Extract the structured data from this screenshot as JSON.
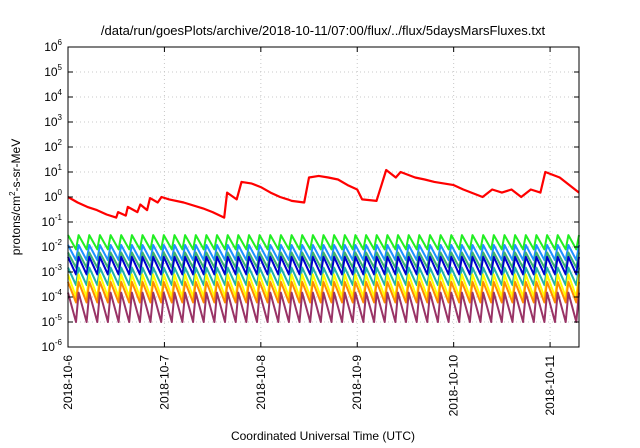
{
  "chart_data": {
    "type": "line",
    "title": "/data/run/goesPlots/archive/2018-10-11/07:00/flux/../flux/5daysMarsFluxes.txt",
    "xlabel": "Coordinated Universal Time (UTC)",
    "ylabel": "protons/cm2-s-sr-MeV",
    "yscale": "log",
    "ylim_log10": [
      -6,
      6
    ],
    "xlim_days": [
      0,
      5.3
    ],
    "x_tick_labels": [
      "2018-10-6",
      "2018-10-7",
      "2018-10-8",
      "2018-10-9",
      "2018-10-10",
      "2018-10-11"
    ],
    "y_tick_exponents": [
      -6,
      -5,
      -4,
      -3,
      -2,
      -1,
      0,
      1,
      2,
      3,
      4,
      5,
      6
    ],
    "y_tick_base": "10",
    "grid": true,
    "legend": "none",
    "series": [
      {
        "color": "#ff0000",
        "x": [
          0,
          0.1,
          0.2,
          0.3,
          0.4,
          0.5,
          0.52,
          0.6,
          0.62,
          0.72,
          0.75,
          0.82,
          0.85,
          0.93,
          0.97,
          1.05,
          1.2,
          1.4,
          1.5,
          1.62,
          1.65,
          1.75,
          1.8,
          1.9,
          2.0,
          2.1,
          2.2,
          2.28,
          2.32,
          2.45,
          2.5,
          2.6,
          2.7,
          2.8,
          2.9,
          3.0,
          3.05,
          3.2,
          3.3,
          3.4,
          3.45,
          3.6,
          3.7,
          3.8,
          4.0,
          4.1,
          4.3,
          4.4,
          4.5,
          4.6,
          4.7,
          4.8,
          4.9,
          4.95,
          5.1,
          5.3
        ],
        "values": [
          1.0,
          0.6,
          0.4,
          0.3,
          0.2,
          0.15,
          0.25,
          0.18,
          0.4,
          0.25,
          0.5,
          0.3,
          0.9,
          0.6,
          1.0,
          0.8,
          0.6,
          0.35,
          0.25,
          0.15,
          1.5,
          0.8,
          4.0,
          3.5,
          2.5,
          1.5,
          1.0,
          0.8,
          0.7,
          0.6,
          6.0,
          7.0,
          6.0,
          5.0,
          3.0,
          2.0,
          0.8,
          0.7,
          12.0,
          6.0,
          10.0,
          6.0,
          5.0,
          4.0,
          3.0,
          2.0,
          1.0,
          2.0,
          1.5,
          2.0,
          1.0,
          2.0,
          1.5,
          10.0,
          6.0,
          1.5
        ]
      },
      {
        "color": "#22ee22",
        "envelope": [
          0.008,
          0.03
        ]
      },
      {
        "color": "#1e90ff",
        "envelope": [
          0.003,
          0.012
        ]
      },
      {
        "color": "#3cb371",
        "envelope": [
          0.0015,
          0.006
        ]
      },
      {
        "color": "#0000cd",
        "envelope": [
          0.0008,
          0.004
        ]
      },
      {
        "color": "#20b2aa",
        "envelope": [
          0.0003,
          0.0015
        ]
      },
      {
        "color": "#ffff00",
        "envelope": [
          0.0001,
          0.0008
        ]
      },
      {
        "color": "#ff8c00",
        "envelope": [
          6e-05,
          0.0004
        ]
      },
      {
        "color": "#993366",
        "envelope": [
          1e-05,
          0.00015
        ]
      }
    ]
  }
}
